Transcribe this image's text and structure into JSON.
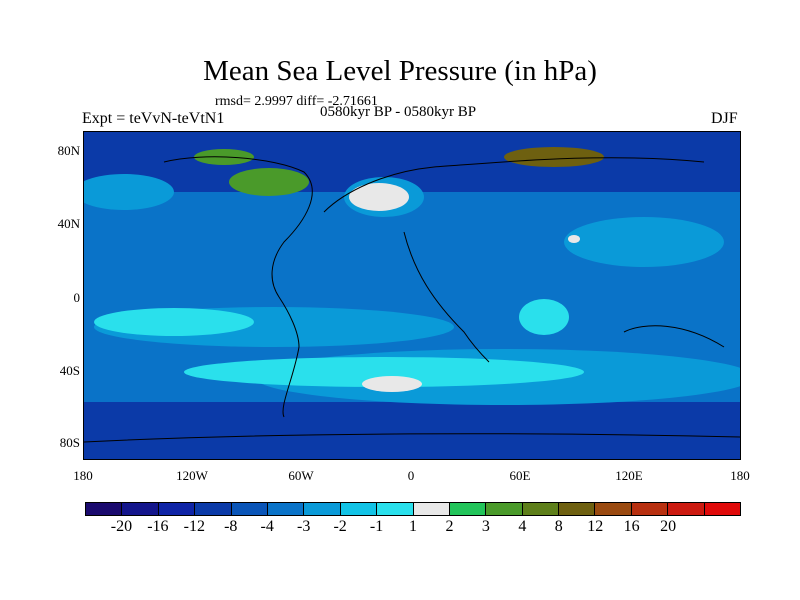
{
  "title": "Mean Sea Level Pressure (in hPa)",
  "stats": "rmsd= 2.9997 diff= -2.71661",
  "left_label": "Expt = teVvN-teVtN1",
  "center_label": "0580kyr BP - 0580kyr BP",
  "right_label": "DJF",
  "lat_ticks": [
    "80N",
    "40N",
    "0",
    "40S",
    "80S"
  ],
  "lon_ticks": [
    "180",
    "120W",
    "60W",
    "0",
    "60E",
    "120E",
    "180"
  ],
  "colorbar": {
    "labels": [
      "-20",
      "-16",
      "-12",
      "-8",
      "-4",
      "-3",
      "-2",
      "-1",
      "1",
      "2",
      "3",
      "4",
      "8",
      "12",
      "16",
      "20"
    ],
    "colors": [
      "#1a0a6e",
      "#14168c",
      "#0f24a6",
      "#0b3aa8",
      "#0a55b8",
      "#0a73c8",
      "#0a9ad8",
      "#12c3e6",
      "#2ae0ec",
      "#e8e8e8",
      "#22c45a",
      "#4a9a2a",
      "#5e7f1a",
      "#6e6010",
      "#9a4a10",
      "#b83010",
      "#cc1a10",
      "#e00a0a"
    ]
  },
  "map_colors": {
    "ocean_base": "#0a73c8",
    "high_lat": "#0b3aa8",
    "light": "#0a9ad8",
    "lighter": "#2ae0ec",
    "white": "#e8e8e8",
    "green": "#4a9a2a",
    "brown": "#6e6010"
  }
}
